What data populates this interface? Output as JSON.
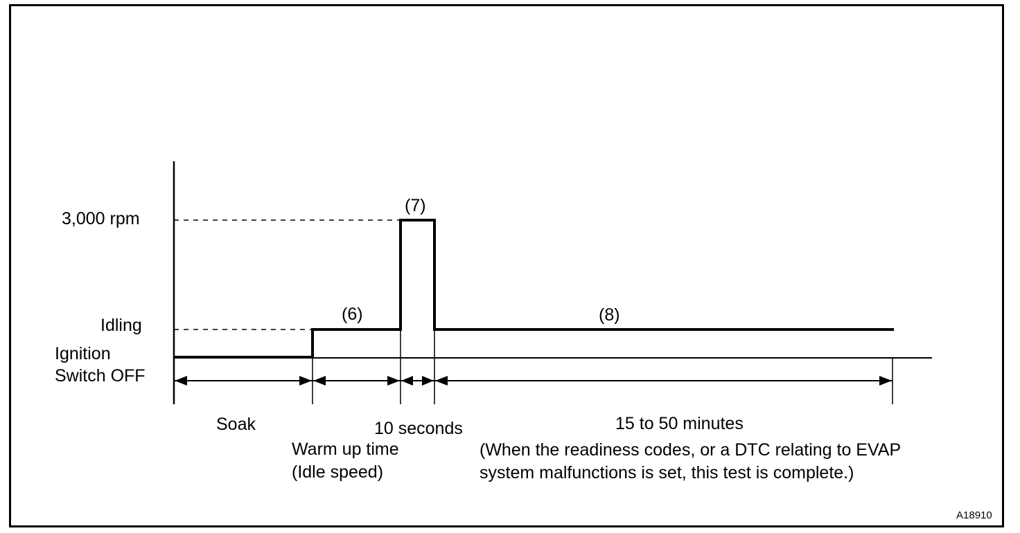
{
  "y_levels": {
    "rpm_3000": "3,000 rpm",
    "idling": "Idling",
    "ignition_off_line1": "Ignition",
    "ignition_off_line2": "Switch OFF"
  },
  "steps": {
    "step6": "(6)",
    "step7": "(7)",
    "step8": "(8)"
  },
  "phases": {
    "soak": "Soak",
    "warm_up_line1": "Warm up time",
    "warm_up_line2": "(Idle speed)",
    "ten_seconds": "10 seconds",
    "duration": "15 to 50 minutes",
    "note_line1": "(When the readiness codes, or a DTC relating to EVAP",
    "note_line2": "system malfunctions is set, this test is complete.)"
  },
  "figure_id": "A18910"
}
